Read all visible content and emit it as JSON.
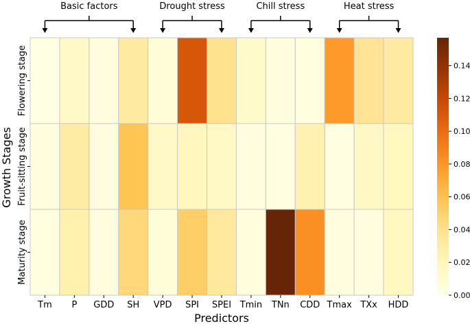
{
  "chart_data": {
    "type": "heatmap",
    "xlabel": "Predictors",
    "ylabel": "Growth Stages",
    "x_categories": [
      "Tm",
      "P",
      "GDD",
      "SH",
      "VPD",
      "SPI",
      "SPEI",
      "Tmin",
      "TNn",
      "CDD",
      "Tmax",
      "TXx",
      "HDD"
    ],
    "y_categories": [
      "Flowering stage",
      "Fruit-sitting stage",
      "Maturity stage"
    ],
    "values": [
      [
        0.001,
        0.014,
        0.004,
        0.032,
        0.006,
        0.112,
        0.04,
        0.013,
        0.004,
        0.003,
        0.078,
        0.038,
        0.032
      ],
      [
        0.004,
        0.03,
        0.004,
        0.058,
        0.014,
        0.019,
        0.015,
        0.004,
        0.002,
        0.025,
        0.002,
        0.016,
        0.018
      ],
      [
        0.003,
        0.026,
        0.004,
        0.046,
        0.006,
        0.052,
        0.033,
        0.005,
        0.157,
        0.083,
        0.004,
        0.004,
        0.017
      ]
    ],
    "groups": [
      {
        "label": "Basic factors",
        "from": "Tm",
        "to": "SH"
      },
      {
        "label": "Drought stress",
        "from": "VPD",
        "to": "SPEI"
      },
      {
        "label": "Chill stress",
        "from": "Tmin",
        "to": "CDD"
      },
      {
        "label": "Heat stress",
        "from": "Tmax",
        "to": "HDD"
      }
    ],
    "colorbar": {
      "range": [
        0,
        0.157
      ],
      "ticks": [
        0.0,
        0.02,
        0.04,
        0.06,
        0.08,
        0.1,
        0.12,
        0.14
      ],
      "tick_labels": [
        "0.00",
        "0.02",
        "0.04",
        "0.06",
        "0.08",
        "0.10",
        "0.12",
        "0.14"
      ],
      "colormap": "YlOrBr",
      "colors": [
        "#ffffe5",
        "#fff7bc",
        "#fee391",
        "#fec44f",
        "#fe9929",
        "#ec7014",
        "#cc4c02",
        "#993404",
        "#662506"
      ]
    }
  }
}
